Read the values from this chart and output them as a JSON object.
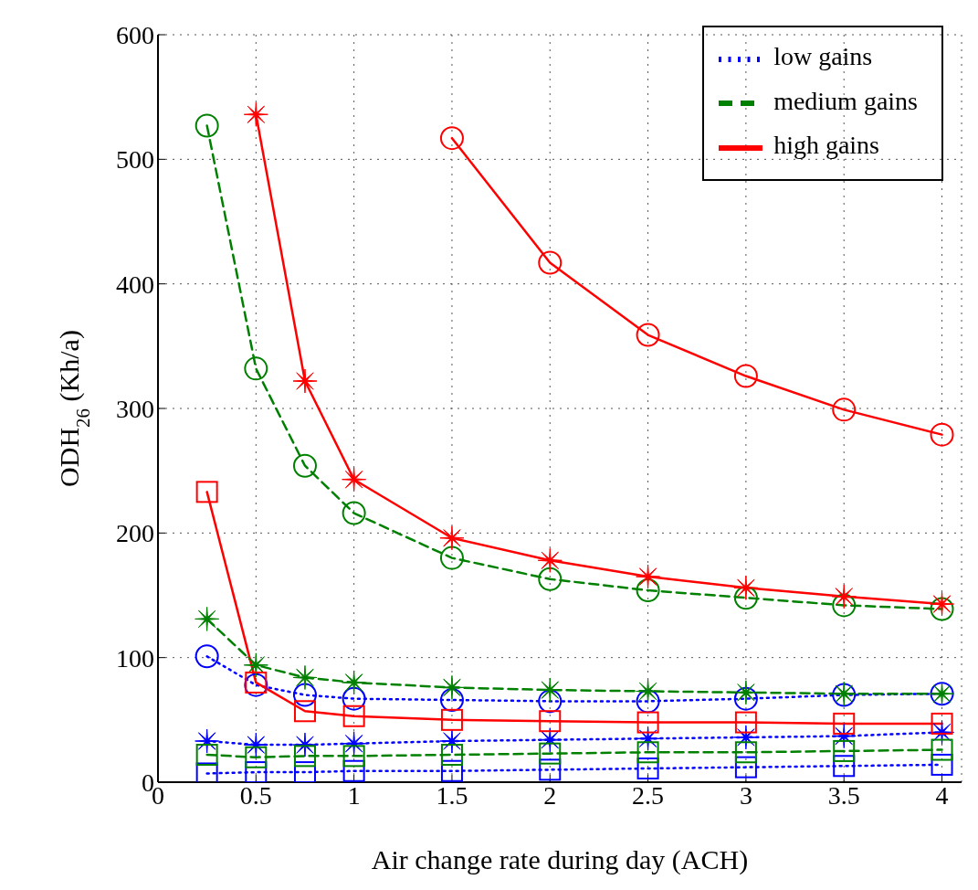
{
  "chart_data": {
    "type": "line",
    "xlabel": "Air change rate during day (ACH)",
    "ylabel": "ODH$_{26}$ (Kh/a)",
    "x": [
      0.25,
      0.5,
      0.75,
      1,
      1.5,
      2,
      2.5,
      3,
      3.5,
      4
    ],
    "xlim": [
      0,
      4.1
    ],
    "xticks": [
      0,
      0.5,
      1,
      1.5,
      2,
      2.5,
      3,
      3.5,
      4
    ],
    "ylim": [
      0,
      600
    ],
    "yticks": [
      0,
      100,
      200,
      300,
      400,
      500,
      600
    ],
    "grid": true,
    "legend": "top right",
    "series": [
      {
        "name": "low gains",
        "color": "#0000ff",
        "marker": "circle",
        "line_style": "dotted",
        "values": [
          101,
          78,
          70,
          67,
          66,
          65,
          65,
          67,
          70,
          71
        ]
      },
      {
        "color": "#0000ff",
        "marker": "star",
        "line_style": "dotted",
        "values": [
          33,
          30,
          30,
          31,
          33,
          34,
          35,
          36,
          37,
          40
        ]
      },
      {
        "color": "#0000ff",
        "marker": "square",
        "line_style": "dotted",
        "values": [
          7,
          8,
          8,
          9,
          9,
          10,
          11,
          12,
          13,
          14
        ]
      },
      {
        "name": "medium gains",
        "color": "#008000",
        "marker": "circle",
        "line_style": "dashed",
        "values": [
          527,
          332,
          254,
          216,
          180,
          163,
          154,
          148,
          142,
          139
        ]
      },
      {
        "color": "#008000",
        "marker": "star",
        "line_style": "dashed",
        "values": [
          131,
          94,
          84,
          80,
          76,
          74,
          73,
          72,
          71,
          71
        ]
      },
      {
        "color": "#008000",
        "marker": "square",
        "line_style": "dashed",
        "values": [
          22,
          20,
          21,
          21,
          22,
          23,
          24,
          24,
          25,
          26
        ]
      },
      {
        "name": "high gains",
        "color": "#ff0000",
        "marker": "circle",
        "line_style": "solid",
        "values": [
          null,
          null,
          null,
          null,
          517,
          417,
          359,
          326,
          299,
          279
        ]
      },
      {
        "color": "#ff0000",
        "marker": "star",
        "line_style": "solid",
        "values": [
          null,
          536,
          322,
          243,
          196,
          178,
          165,
          156,
          149,
          143
        ]
      },
      {
        "color": "#ff0000",
        "marker": "square",
        "line_style": "solid",
        "values": [
          233,
          80,
          57,
          53,
          50,
          49,
          48,
          48,
          47,
          47
        ]
      }
    ]
  }
}
